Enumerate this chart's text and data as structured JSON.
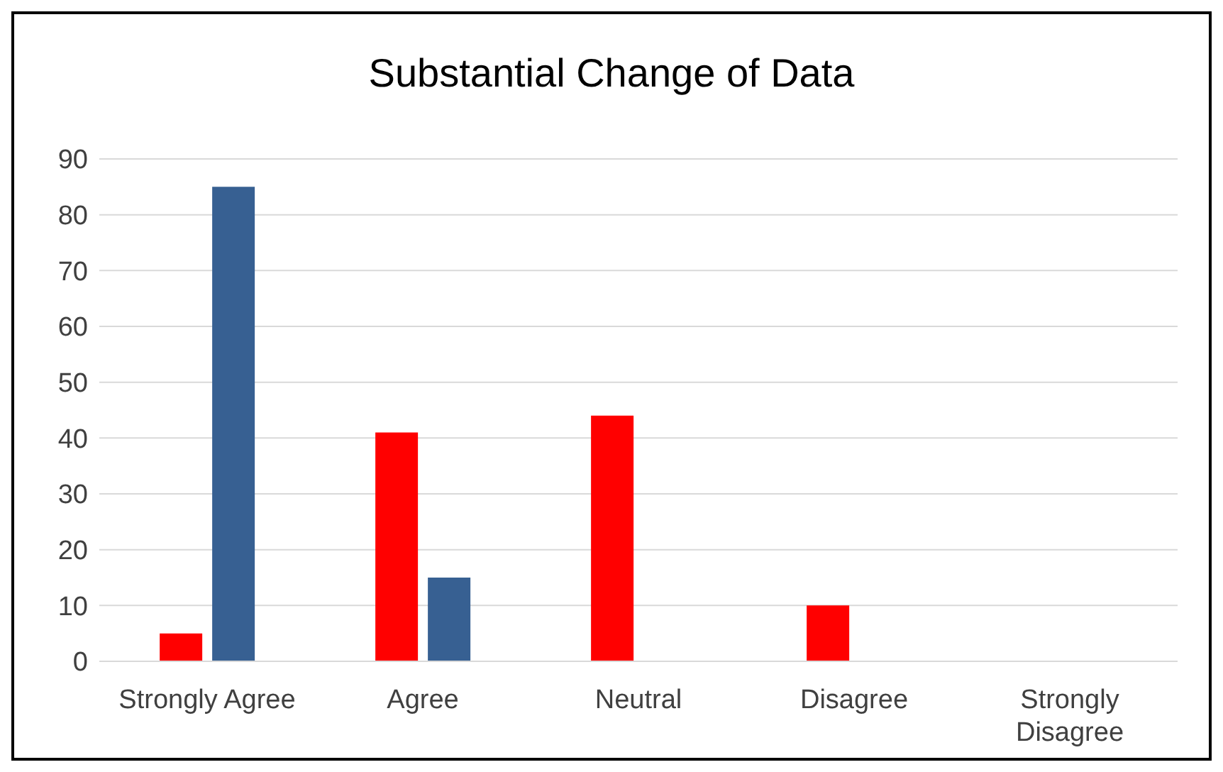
{
  "chart_data": {
    "type": "bar",
    "title": "Substantial Change of Data",
    "categories": [
      "Strongly Agree",
      "Agree",
      "Neutral",
      "Disagree",
      "Strongly Disagree"
    ],
    "series": [
      {
        "color": "#ff0000",
        "values": [
          5,
          41,
          44,
          10,
          0
        ]
      },
      {
        "color": "#376092",
        "values": [
          85,
          15,
          0,
          0,
          0
        ]
      }
    ],
    "ylim": [
      0,
      90
    ],
    "yticks": [
      0,
      10,
      20,
      30,
      40,
      50,
      60,
      70,
      80,
      90
    ],
    "grid": "y",
    "legend": false
  }
}
